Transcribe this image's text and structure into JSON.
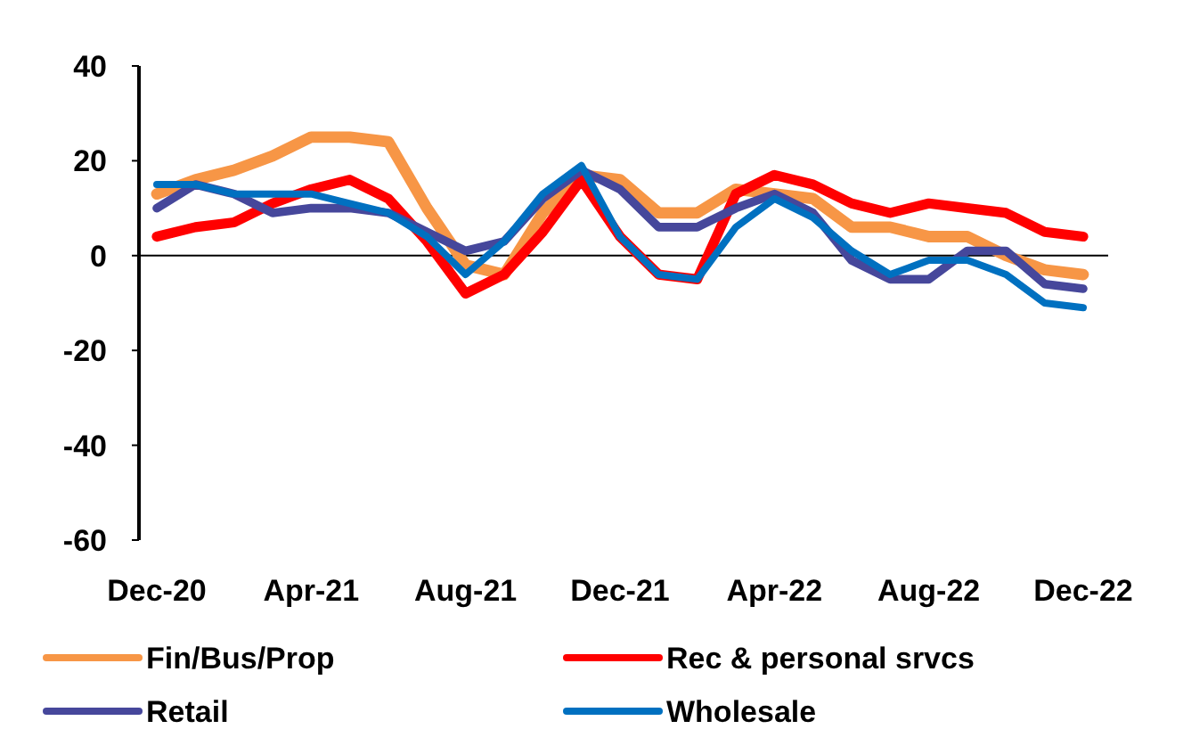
{
  "chart_data": {
    "type": "line",
    "categories": [
      "Dec-20",
      null,
      null,
      null,
      "Apr-21",
      null,
      null,
      null,
      "Aug-21",
      null,
      null,
      null,
      "Dec-21",
      null,
      null,
      null,
      "Apr-22",
      null,
      null,
      null,
      "Aug-22",
      null,
      null,
      null,
      "Dec-22"
    ],
    "series": [
      {
        "name": "Fin/Bus/Prop",
        "color": "#f79646",
        "values": [
          13,
          16,
          18,
          21,
          25,
          25,
          24,
          10,
          -2,
          -4,
          9,
          17,
          16,
          9,
          9,
          14,
          13,
          12,
          6,
          6,
          4,
          4,
          0,
          -3,
          -4
        ]
      },
      {
        "name": "Rec & personal srvcs",
        "color": "#ff0000",
        "values": [
          4,
          6,
          7,
          11,
          14,
          16,
          12,
          3,
          -8,
          -4,
          5,
          16,
          4,
          -4,
          -5,
          13,
          17,
          15,
          11,
          9,
          11,
          10,
          9,
          5,
          4
        ]
      },
      {
        "name": "Retail",
        "color": "#46479b",
        "values": [
          10,
          15,
          13,
          9,
          10,
          10,
          9,
          5,
          1,
          3,
          12,
          18,
          14,
          6,
          6,
          10,
          13,
          9,
          -1,
          -5,
          -5,
          1,
          1,
          -6,
          -7
        ]
      },
      {
        "name": "Wholesale",
        "color": "#0070c0",
        "values": [
          15,
          15,
          13,
          13,
          13,
          11,
          9,
          4,
          -4,
          3,
          13,
          19,
          4,
          -4,
          -5,
          6,
          12,
          8,
          1,
          -4,
          -1,
          -1,
          -4,
          -10,
          -11
        ]
      }
    ],
    "ylim": [
      -60,
      40
    ],
    "yticks": [
      -60,
      -40,
      -20,
      0,
      20,
      40
    ],
    "legend": "bottom",
    "marker": "none",
    "line_style": "solid"
  }
}
